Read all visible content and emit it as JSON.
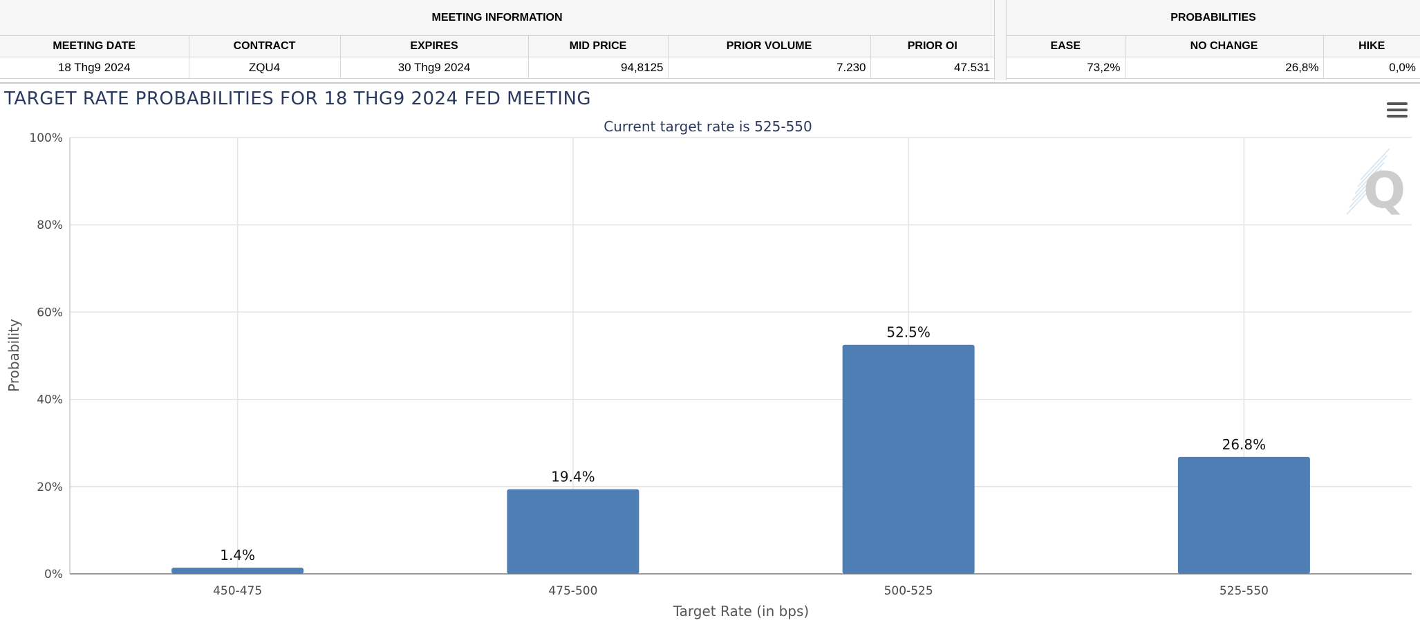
{
  "meeting_info": {
    "group_title": "MEETING INFORMATION",
    "columns": [
      "MEETING DATE",
      "CONTRACT",
      "EXPIRES",
      "MID PRICE",
      "PRIOR VOLUME",
      "PRIOR OI"
    ],
    "row": [
      "18 Thg9 2024",
      "ZQU4",
      "30 Thg9 2024",
      "94,8125",
      "7.230",
      "47.531"
    ]
  },
  "probabilities": {
    "group_title": "PROBABILITIES",
    "columns": [
      "EASE",
      "NO CHANGE",
      "HIKE"
    ],
    "row": [
      "73,2%",
      "26,8%",
      "0,0%"
    ]
  },
  "chart": {
    "menu_icon": "hamburger-menu-icon",
    "watermark_icon": "q-logo-watermark",
    "bar_color": "#4e7eb3"
  },
  "chart_data": {
    "type": "bar",
    "title": "TARGET RATE PROBABILITIES FOR 18 THG9 2024 FED MEETING",
    "subtitle": "Current target rate is 525-550",
    "xlabel": "Target Rate (in bps)",
    "ylabel": "Probability",
    "categories": [
      "450-475",
      "475-500",
      "500-525",
      "525-550"
    ],
    "values": [
      1.4,
      19.4,
      52.5,
      26.8
    ],
    "data_labels": [
      "1.4%",
      "19.4%",
      "52.5%",
      "26.8%"
    ],
    "ylim": [
      0,
      100
    ],
    "yticks": [
      "0%",
      "20%",
      "40%",
      "60%",
      "80%",
      "100%"
    ],
    "grid": true,
    "legend": "none"
  }
}
